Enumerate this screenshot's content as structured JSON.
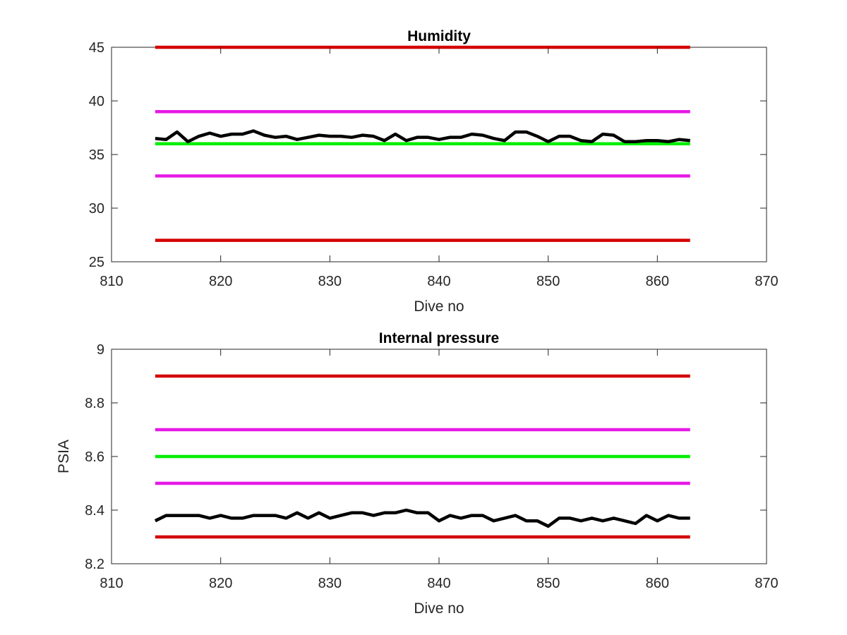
{
  "colors": {
    "red": "#d40000",
    "magenta": "#e619e6",
    "green": "#00ee00",
    "black": "#000000"
  },
  "chart_data": [
    {
      "type": "line",
      "title": "Humidity",
      "xlabel": "Dive no",
      "ylabel": "",
      "xlim": [
        810,
        870
      ],
      "ylim": [
        25,
        45
      ],
      "xticks": [
        810,
        820,
        830,
        840,
        850,
        860,
        870
      ],
      "yticks": [
        25,
        30,
        35,
        40,
        45
      ],
      "ytick_labels": [
        "25",
        "30",
        "35",
        "40",
        "45"
      ],
      "hlines": [
        {
          "y": 45,
          "x": [
            814,
            863
          ],
          "color": "#d40000"
        },
        {
          "y": 39,
          "x": [
            814,
            863
          ],
          "color": "#e619e6"
        },
        {
          "y": 36,
          "x": [
            814,
            863
          ],
          "color": "#00ee00"
        },
        {
          "y": 33,
          "x": [
            814,
            863
          ],
          "color": "#e619e6"
        },
        {
          "y": 27,
          "x": [
            814,
            863
          ],
          "color": "#d40000"
        }
      ],
      "series": [
        {
          "color": "#000000",
          "x": [
            814,
            815,
            816,
            817,
            818,
            819,
            820,
            821,
            822,
            823,
            824,
            825,
            826,
            827,
            828,
            829,
            830,
            831,
            832,
            833,
            834,
            835,
            836,
            837,
            838,
            839,
            840,
            841,
            842,
            843,
            844,
            845,
            846,
            847,
            848,
            849,
            850,
            851,
            852,
            853,
            854,
            855,
            856,
            857,
            858,
            859,
            860,
            861,
            862,
            863
          ],
          "values": [
            36.5,
            36.4,
            37.1,
            36.2,
            36.7,
            37.0,
            36.7,
            36.9,
            36.9,
            37.2,
            36.8,
            36.6,
            36.7,
            36.4,
            36.6,
            36.8,
            36.7,
            36.7,
            36.6,
            36.8,
            36.7,
            36.3,
            36.9,
            36.3,
            36.6,
            36.6,
            36.4,
            36.6,
            36.6,
            36.9,
            36.8,
            36.5,
            36.3,
            37.1,
            37.1,
            36.7,
            36.2,
            36.7,
            36.7,
            36.3,
            36.2,
            36.9,
            36.8,
            36.2,
            36.2,
            36.3,
            36.3,
            36.2,
            36.4,
            36.3
          ]
        }
      ]
    },
    {
      "type": "line",
      "title": "Internal pressure",
      "xlabel": "Dive no",
      "ylabel": "PSIA",
      "xlim": [
        810,
        870
      ],
      "ylim": [
        8.2,
        9
      ],
      "xticks": [
        810,
        820,
        830,
        840,
        850,
        860,
        870
      ],
      "yticks": [
        8.2,
        8.4,
        8.6,
        8.8,
        9
      ],
      "ytick_labels": [
        "8.2",
        "8.4",
        "8.6",
        "8.8",
        "9"
      ],
      "hlines": [
        {
          "y": 8.9,
          "x": [
            814,
            863
          ],
          "color": "#d40000"
        },
        {
          "y": 8.7,
          "x": [
            814,
            863
          ],
          "color": "#e619e6"
        },
        {
          "y": 8.6,
          "x": [
            814,
            863
          ],
          "color": "#00ee00"
        },
        {
          "y": 8.5,
          "x": [
            814,
            863
          ],
          "color": "#e619e6"
        },
        {
          "y": 8.3,
          "x": [
            814,
            863
          ],
          "color": "#d40000"
        }
      ],
      "series": [
        {
          "color": "#000000",
          "x": [
            814,
            815,
            816,
            817,
            818,
            819,
            820,
            821,
            822,
            823,
            824,
            825,
            826,
            827,
            828,
            829,
            830,
            831,
            832,
            833,
            834,
            835,
            836,
            837,
            838,
            839,
            840,
            841,
            842,
            843,
            844,
            845,
            846,
            847,
            848,
            849,
            850,
            851,
            852,
            853,
            854,
            855,
            856,
            857,
            858,
            859,
            860,
            861,
            862,
            863
          ],
          "values": [
            8.36,
            8.38,
            8.38,
            8.38,
            8.38,
            8.37,
            8.38,
            8.37,
            8.37,
            8.38,
            8.38,
            8.38,
            8.37,
            8.39,
            8.37,
            8.39,
            8.37,
            8.38,
            8.39,
            8.39,
            8.38,
            8.39,
            8.39,
            8.4,
            8.39,
            8.39,
            8.36,
            8.38,
            8.37,
            8.38,
            8.38,
            8.36,
            8.37,
            8.38,
            8.36,
            8.36,
            8.34,
            8.37,
            8.37,
            8.36,
            8.37,
            8.36,
            8.37,
            8.36,
            8.35,
            8.38,
            8.36,
            8.38,
            8.37,
            8.37
          ]
        }
      ]
    }
  ]
}
